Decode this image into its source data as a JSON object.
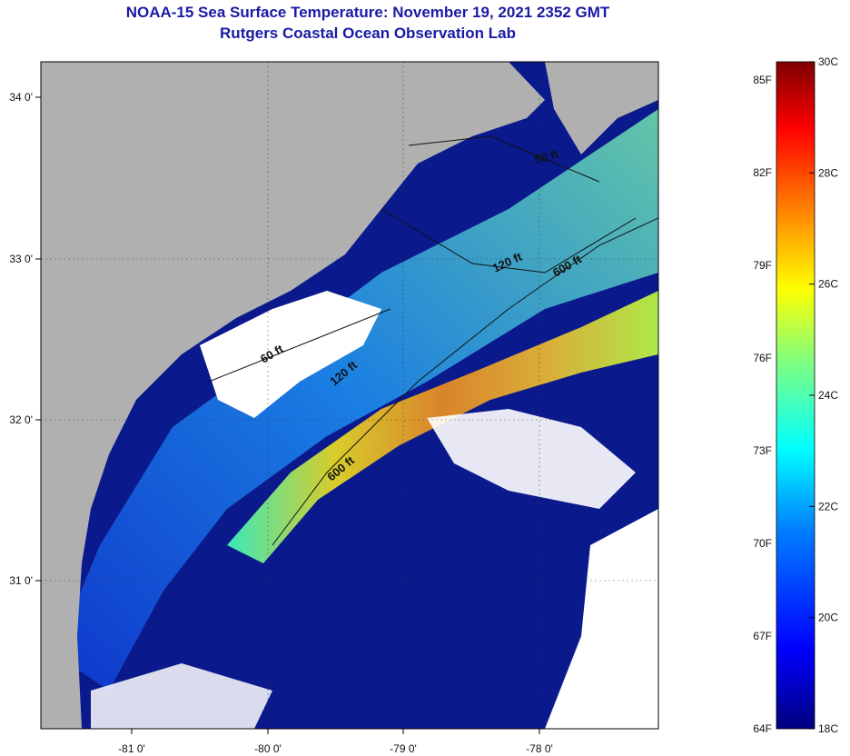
{
  "title": "NOAA-15 Sea Surface Temperature:  November 19, 2021 2352 GMT",
  "subtitle": "Rutgers Coastal Ocean Observation Lab",
  "map": {
    "lon_labels": [
      "-81 0'",
      "-80 0'",
      "-79 0'",
      "-78 0'"
    ],
    "lat_labels": [
      "34 0'",
      "33 0'",
      "32 0'",
      "31 0'"
    ],
    "contour_labels": [
      "50 ft",
      "120 ft",
      "600 ft",
      "60 ft",
      "120 ft",
      "600 ft"
    ],
    "colors": {
      "land": "#b0b0b0",
      "cloud": "#ffffff",
      "cold_water": "#0a1a8c",
      "warm_water": "#f0a020"
    }
  },
  "colorbar": {
    "fahrenheit_labels": [
      "85F",
      "82F",
      "79F",
      "76F",
      "73F",
      "70F",
      "67F",
      "64F"
    ],
    "celsius_labels": [
      "30C",
      "28C",
      "26C",
      "24C",
      "22C",
      "20C",
      "18C"
    ],
    "colors": [
      "#00007f",
      "#0000ff",
      "#0080ff",
      "#00ffff",
      "#80ff80",
      "#ffff00",
      "#ff8000",
      "#ff0000",
      "#7f0000"
    ]
  }
}
